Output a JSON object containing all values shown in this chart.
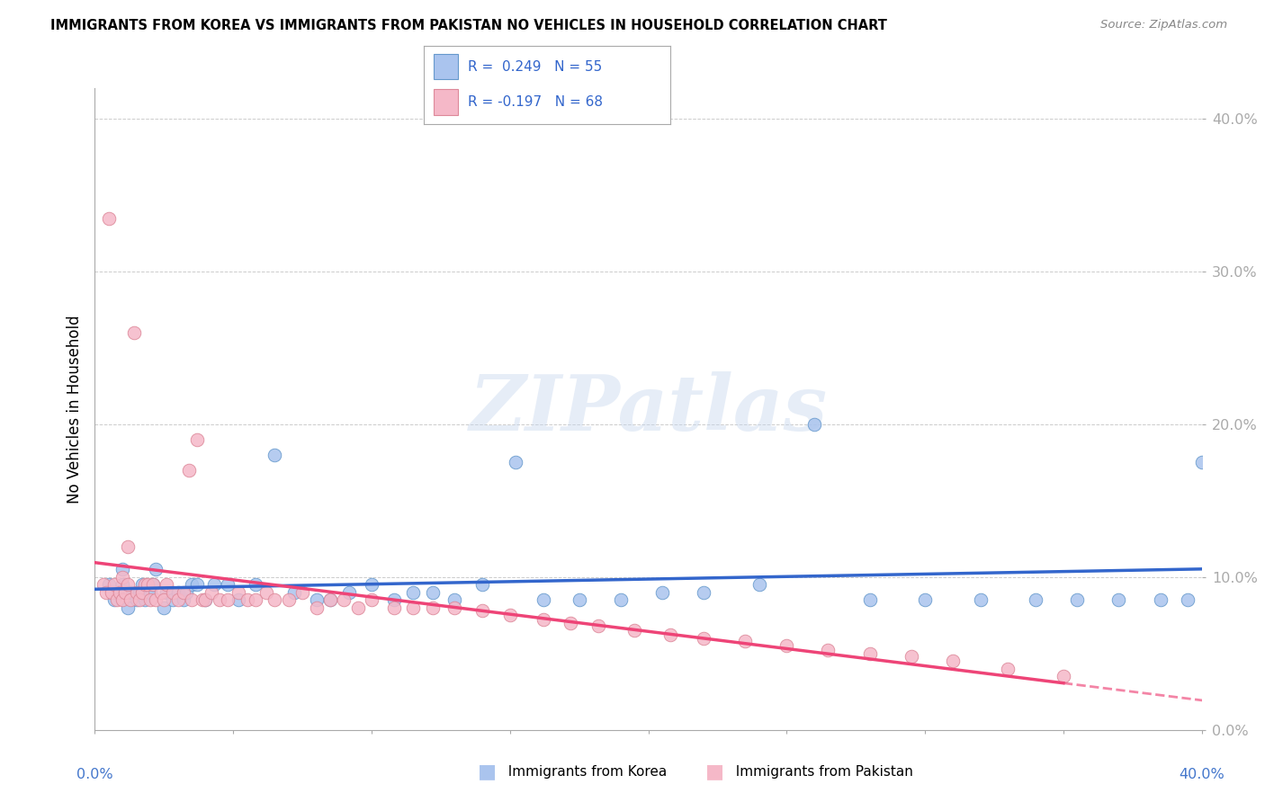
{
  "title": "IMMIGRANTS FROM KOREA VS IMMIGRANTS FROM PAKISTAN NO VEHICLES IN HOUSEHOLD CORRELATION CHART",
  "source": "Source: ZipAtlas.com",
  "ylabel": "No Vehicles in Household",
  "korea_R": 0.249,
  "korea_N": 55,
  "pakistan_R": -0.197,
  "pakistan_N": 68,
  "korea_color": "#aac4ee",
  "korea_edge_color": "#6699cc",
  "pakistan_color": "#f5b8c8",
  "pakistan_edge_color": "#dd8899",
  "korea_line_color": "#3366cc",
  "pakistan_line_color": "#ee4477",
  "watermark": "ZIPatlas",
  "xlim": [
    0.0,
    0.4
  ],
  "ylim": [
    0.0,
    0.42
  ],
  "ytick_vals": [
    0.0,
    0.1,
    0.2,
    0.3,
    0.4
  ],
  "ytick_labels": [
    "0.0%",
    "10.0%",
    "20.0%",
    "30.0%",
    "40.0%"
  ],
  "korea_x": [
    0.005,
    0.007,
    0.008,
    0.01,
    0.01,
    0.012,
    0.013,
    0.015,
    0.016,
    0.017,
    0.018,
    0.02,
    0.021,
    0.022,
    0.025,
    0.026,
    0.028,
    0.03,
    0.032,
    0.033,
    0.035,
    0.037,
    0.04,
    0.043,
    0.048,
    0.052,
    0.058,
    0.065,
    0.072,
    0.08,
    0.085,
    0.092,
    0.1,
    0.108,
    0.115,
    0.122,
    0.13,
    0.14,
    0.152,
    0.162,
    0.175,
    0.19,
    0.205,
    0.22,
    0.24,
    0.26,
    0.28,
    0.3,
    0.32,
    0.34,
    0.355,
    0.37,
    0.385,
    0.395,
    0.4
  ],
  "korea_y": [
    0.095,
    0.085,
    0.09,
    0.095,
    0.105,
    0.08,
    0.09,
    0.085,
    0.09,
    0.095,
    0.085,
    0.09,
    0.095,
    0.105,
    0.08,
    0.09,
    0.085,
    0.09,
    0.085,
    0.09,
    0.095,
    0.095,
    0.085,
    0.095,
    0.095,
    0.085,
    0.095,
    0.18,
    0.09,
    0.085,
    0.085,
    0.09,
    0.095,
    0.085,
    0.09,
    0.09,
    0.085,
    0.095,
    0.175,
    0.085,
    0.085,
    0.085,
    0.09,
    0.09,
    0.095,
    0.2,
    0.085,
    0.085,
    0.085,
    0.085,
    0.085,
    0.085,
    0.085,
    0.085,
    0.175
  ],
  "pakistan_x": [
    0.003,
    0.004,
    0.005,
    0.006,
    0.007,
    0.008,
    0.009,
    0.01,
    0.01,
    0.011,
    0.012,
    0.012,
    0.013,
    0.014,
    0.015,
    0.016,
    0.017,
    0.018,
    0.019,
    0.02,
    0.021,
    0.022,
    0.024,
    0.025,
    0.026,
    0.028,
    0.03,
    0.032,
    0.034,
    0.035,
    0.037,
    0.039,
    0.04,
    0.042,
    0.045,
    0.048,
    0.052,
    0.055,
    0.058,
    0.062,
    0.065,
    0.07,
    0.075,
    0.08,
    0.085,
    0.09,
    0.095,
    0.1,
    0.108,
    0.115,
    0.122,
    0.13,
    0.14,
    0.15,
    0.162,
    0.172,
    0.182,
    0.195,
    0.208,
    0.22,
    0.235,
    0.25,
    0.265,
    0.28,
    0.295,
    0.31,
    0.33,
    0.35
  ],
  "pakistan_y": [
    0.095,
    0.09,
    0.335,
    0.09,
    0.095,
    0.085,
    0.09,
    0.1,
    0.085,
    0.09,
    0.12,
    0.095,
    0.085,
    0.26,
    0.09,
    0.085,
    0.09,
    0.095,
    0.095,
    0.085,
    0.095,
    0.085,
    0.09,
    0.085,
    0.095,
    0.09,
    0.085,
    0.09,
    0.17,
    0.085,
    0.19,
    0.085,
    0.085,
    0.09,
    0.085,
    0.085,
    0.09,
    0.085,
    0.085,
    0.09,
    0.085,
    0.085,
    0.09,
    0.08,
    0.085,
    0.085,
    0.08,
    0.085,
    0.08,
    0.08,
    0.08,
    0.08,
    0.078,
    0.075,
    0.072,
    0.07,
    0.068,
    0.065,
    0.062,
    0.06,
    0.058,
    0.055,
    0.052,
    0.05,
    0.048,
    0.045,
    0.04,
    0.035
  ]
}
